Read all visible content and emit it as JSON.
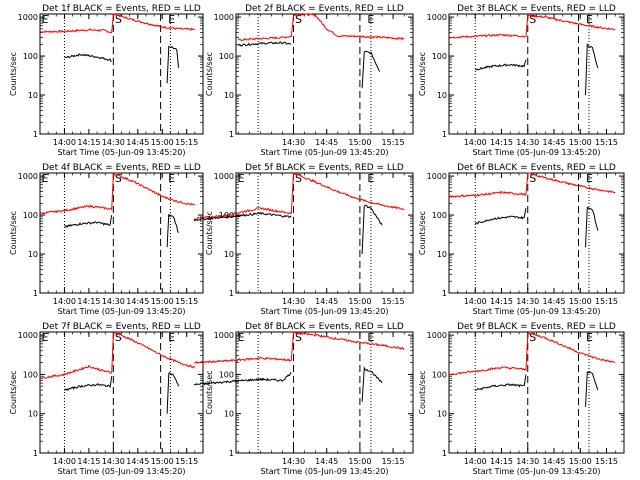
{
  "chart_data": [
    {
      "type": "line",
      "title": "Det 1f BLACK = Events, RED = LLD",
      "xlabel": "Start Time (05-Jun-09 13:45:20)",
      "ylabel": "Counts/sec",
      "x_ticks": [
        "14:00",
        "14:15",
        "14:30",
        "14:45",
        "15:00",
        "15:15"
      ],
      "y_ticks": [
        "1",
        "10",
        "100",
        "1000"
      ],
      "y_scale": "log",
      "ylim": [
        1,
        1200
      ],
      "markers": [
        "E",
        "S",
        "E"
      ],
      "series": [
        {
          "color": "#ff0000",
          "x": [
            "13:45",
            "14:00",
            "14:15",
            "14:25",
            "14:29",
            "14:30",
            "14:40",
            "14:50",
            "15:00",
            "15:10",
            "15:20"
          ],
          "y": [
            420,
            430,
            470,
            450,
            400,
            1200,
            900,
            700,
            560,
            500,
            480
          ]
        },
        {
          "color": "#000000",
          "x": [
            "14:00",
            "14:10",
            "14:20",
            "14:28",
            "14:29"
          ],
          "y": [
            90,
            110,
            95,
            80,
            75
          ]
        },
        {
          "color": "#000000",
          "x": [
            "15:03",
            "15:04",
            "15:06",
            "15:09",
            "15:10"
          ],
          "y": [
            20,
            175,
            170,
            140,
            50
          ]
        }
      ]
    },
    {
      "type": "line",
      "title": "Det 2f BLACK = Events, RED = LLD",
      "xlabel": "Start Time (05-Jun-09 13:45:20)",
      "ylabel": "Counts/sec",
      "x_ticks": [
        "14:30",
        "14:45",
        "15:00",
        "15:15"
      ],
      "y_ticks": [
        "1",
        "10",
        "100",
        "1000"
      ],
      "y_scale": "log",
      "ylim": [
        1,
        1200
      ],
      "markers": [
        "S",
        "E"
      ],
      "series": [
        {
          "color": "#ff0000",
          "x": [
            "14:05",
            "14:15",
            "14:25",
            "14:29",
            "14:30",
            "14:35",
            "14:40",
            "14:45",
            "14:50",
            "15:00",
            "15:10",
            "15:20"
          ],
          "y": [
            260,
            280,
            300,
            320,
            1100,
            1200,
            1100,
            500,
            330,
            320,
            300,
            280
          ]
        },
        {
          "color": "#000000",
          "x": [
            "14:05",
            "14:15",
            "14:25",
            "14:29"
          ],
          "y": [
            190,
            210,
            220,
            200
          ]
        },
        {
          "color": "#000000",
          "x": [
            "15:01",
            "15:02",
            "15:05",
            "15:09"
          ],
          "y": [
            15,
            130,
            120,
            40
          ]
        }
      ]
    },
    {
      "type": "line",
      "title": "Det 3f BLACK = Events, RED = LLD",
      "xlabel": "Start Time (05-Jun-09 13:45:20)",
      "ylabel": "Counts/sec",
      "x_ticks": [
        "14:00",
        "14:15",
        "14:30",
        "14:45",
        "15:00",
        "15:15"
      ],
      "y_ticks": [
        "1",
        "10",
        "100",
        "1000"
      ],
      "y_scale": "log",
      "ylim": [
        1,
        1200
      ],
      "markers": [
        "S",
        "E"
      ],
      "series": [
        {
          "color": "#ff0000",
          "x": [
            "13:45",
            "14:00",
            "14:15",
            "14:25",
            "14:29",
            "14:30",
            "14:40",
            "14:50",
            "15:00",
            "15:10",
            "15:20"
          ],
          "y": [
            300,
            320,
            350,
            330,
            320,
            1100,
            1000,
            800,
            650,
            550,
            480
          ]
        },
        {
          "color": "#000000",
          "x": [
            "14:00",
            "14:10",
            "14:20",
            "14:28",
            "14:29"
          ],
          "y": [
            45,
            55,
            60,
            55,
            80
          ]
        },
        {
          "color": "#000000",
          "x": [
            "15:03",
            "15:04",
            "15:07",
            "15:10"
          ],
          "y": [
            10,
            190,
            160,
            50
          ]
        }
      ]
    },
    {
      "type": "line",
      "title": "Det 4f BLACK = Events, RED = LLD",
      "xlabel": "Start Time (05-Jun-09 13:45:20)",
      "ylabel": "Counts/sec",
      "x_ticks": [
        "14:00",
        "14:15",
        "14:30",
        "14:45",
        "15:00",
        "15:15"
      ],
      "y_ticks": [
        "1",
        "10",
        "100",
        "1000"
      ],
      "y_scale": "log",
      "ylim": [
        1,
        1200
      ],
      "markers": [
        "E",
        "S",
        "E"
      ],
      "series": [
        {
          "color": "#ff0000",
          "x": [
            "13:45",
            "14:00",
            "14:15",
            "14:25",
            "14:29",
            "14:30",
            "14:40",
            "14:50",
            "15:00",
            "15:10",
            "15:20"
          ],
          "y": [
            110,
            130,
            170,
            150,
            140,
            1150,
            800,
            500,
            300,
            220,
            180
          ]
        },
        {
          "color": "#000000",
          "x": [
            "14:00",
            "14:10",
            "14:20",
            "14:28",
            "14:29"
          ],
          "y": [
            50,
            60,
            65,
            55,
            100
          ]
        },
        {
          "color": "#000000",
          "x": [
            "15:03",
            "15:04",
            "15:07",
            "15:10"
          ],
          "y": [
            15,
            100,
            90,
            35
          ]
        }
      ]
    },
    {
      "type": "line",
      "title": "Det 5f BLACK = Events, RED = LLD",
      "xlabel": "Start Time (05-Jun-09 13:45:20)",
      "ylabel": "Counts/sec",
      "x_ticks": [
        "14:30",
        "14:45",
        "15:00",
        "15:15"
      ],
      "y_ticks": [
        "1",
        "10",
        "100",
        "1000"
      ],
      "y_scale": "log",
      "ylim": [
        1,
        1200
      ],
      "markers": [
        "E",
        "S",
        "E"
      ],
      "series": [
        {
          "color": "#ff0000",
          "x": [
            "13:45",
            "14:00",
            "14:15",
            "14:25",
            "14:29",
            "14:30",
            "14:40",
            "14:50",
            "15:00",
            "15:10",
            "15:20"
          ],
          "y": [
            80,
            100,
            150,
            120,
            110,
            1200,
            700,
            400,
            250,
            180,
            140
          ]
        },
        {
          "color": "#000000",
          "x": [
            "13:45",
            "14:00",
            "14:15",
            "14:25",
            "14:29"
          ],
          "y": [
            75,
            90,
            110,
            95,
            90
          ]
        },
        {
          "color": "#000000",
          "x": [
            "15:01",
            "15:02",
            "15:05",
            "15:10"
          ],
          "y": [
            10,
            180,
            150,
            55
          ]
        }
      ]
    },
    {
      "type": "line",
      "title": "Det 6f BLACK = Events, RED = LLD",
      "xlabel": "Start Time (05-Jun-09 13:45:20)",
      "ylabel": "Counts/sec",
      "x_ticks": [
        "14:00",
        "14:15",
        "14:30",
        "14:45",
        "15:00",
        "15:15"
      ],
      "y_ticks": [
        "1",
        "10",
        "100",
        "1000"
      ],
      "y_scale": "log",
      "ylim": [
        1,
        1200
      ],
      "markers": [
        "S",
        "E"
      ],
      "series": [
        {
          "color": "#ff0000",
          "x": [
            "13:45",
            "14:00",
            "14:15",
            "14:25",
            "14:29",
            "14:30",
            "14:40",
            "14:50",
            "15:00",
            "15:10",
            "15:20"
          ],
          "y": [
            300,
            320,
            380,
            350,
            340,
            1200,
            900,
            700,
            550,
            450,
            380
          ]
        },
        {
          "color": "#000000",
          "x": [
            "14:00",
            "14:10",
            "14:20",
            "14:28",
            "14:29"
          ],
          "y": [
            60,
            80,
            90,
            85,
            150
          ]
        },
        {
          "color": "#000000",
          "x": [
            "15:03",
            "15:04",
            "15:07",
            "15:10"
          ],
          "y": [
            15,
            160,
            140,
            40
          ]
        }
      ]
    },
    {
      "type": "line",
      "title": "Det 7f BLACK = Events, RED = LLD",
      "xlabel": "Start Time (05-Jun-09 13:45:20)",
      "ylabel": "Counts/sec",
      "x_ticks": [
        "14:00",
        "14:15",
        "14:30",
        "14:45",
        "15:00",
        "15:15"
      ],
      "y_ticks": [
        "1",
        "10",
        "100",
        "1000"
      ],
      "y_scale": "log",
      "ylim": [
        1,
        1200
      ],
      "markers": [
        "E",
        "S",
        "E"
      ],
      "series": [
        {
          "color": "#ff0000",
          "x": [
            "13:45",
            "14:00",
            "14:15",
            "14:25",
            "14:29",
            "14:30",
            "14:40",
            "14:50",
            "15:00",
            "15:10",
            "15:20"
          ],
          "y": [
            80,
            100,
            160,
            120,
            110,
            1200,
            800,
            500,
            300,
            200,
            150
          ]
        },
        {
          "color": "#000000",
          "x": [
            "14:00",
            "14:10",
            "14:20",
            "14:28",
            "14:29"
          ],
          "y": [
            40,
            50,
            55,
            50,
            90
          ]
        },
        {
          "color": "#000000",
          "x": [
            "15:03",
            "15:04",
            "15:07",
            "15:10"
          ],
          "y": [
            10,
            110,
            95,
            50
          ]
        }
      ]
    },
    {
      "type": "line",
      "title": "Det 8f BLACK = Events, RED = LLD",
      "xlabel": "Start Time (05-Jun-09 13:45:20)",
      "ylabel": "Counts/sec",
      "x_ticks": [
        "14:30",
        "14:45",
        "15:00",
        "15:15"
      ],
      "y_ticks": [
        "1",
        "10",
        "100",
        "1000"
      ],
      "y_scale": "log",
      "ylim": [
        1,
        1200
      ],
      "markers": [
        "E",
        "S",
        "E"
      ],
      "series": [
        {
          "color": "#ff0000",
          "x": [
            "13:45",
            "14:00",
            "14:15",
            "14:25",
            "14:29",
            "14:30",
            "14:40",
            "14:50",
            "15:00",
            "15:10",
            "15:20"
          ],
          "y": [
            200,
            220,
            260,
            240,
            230,
            1150,
            1000,
            800,
            650,
            550,
            450
          ]
        },
        {
          "color": "#000000",
          "x": [
            "13:45",
            "14:00",
            "14:15",
            "14:25",
            "14:29"
          ],
          "y": [
            55,
            65,
            75,
            70,
            110
          ]
        },
        {
          "color": "#000000",
          "x": [
            "15:01",
            "15:02",
            "15:05",
            "15:10"
          ],
          "y": [
            20,
            140,
            120,
            60
          ]
        }
      ]
    },
    {
      "type": "line",
      "title": "Det 9f BLACK = Events, RED = LLD",
      "xlabel": "Start Time (05-Jun-09 13:45:20)",
      "ylabel": "Counts/sec",
      "x_ticks": [
        "14:00",
        "14:15",
        "14:30",
        "14:45",
        "15:00",
        "15:15"
      ],
      "y_ticks": [
        "1",
        "10",
        "100",
        "1000"
      ],
      "y_scale": "log",
      "ylim": [
        1,
        1200
      ],
      "markers": [
        "S",
        "E"
      ],
      "series": [
        {
          "color": "#ff0000",
          "x": [
            "13:45",
            "14:00",
            "14:15",
            "14:25",
            "14:29",
            "14:30",
            "14:40",
            "14:50",
            "15:00",
            "15:10",
            "15:20"
          ],
          "y": [
            100,
            120,
            150,
            140,
            130,
            1150,
            850,
            550,
            350,
            250,
            200
          ]
        },
        {
          "color": "#000000",
          "x": [
            "14:00",
            "14:10",
            "14:20",
            "14:28",
            "14:29"
          ],
          "y": [
            40,
            50,
            55,
            50,
            100
          ]
        },
        {
          "color": "#000000",
          "x": [
            "15:03",
            "15:04",
            "15:07",
            "15:10"
          ],
          "y": [
            15,
            120,
            100,
            40
          ]
        }
      ]
    }
  ]
}
